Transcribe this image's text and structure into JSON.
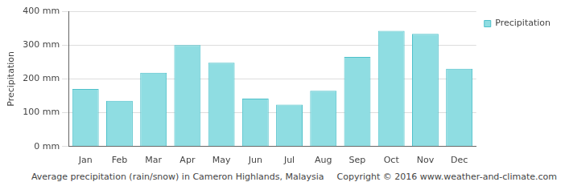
{
  "chart_data": {
    "type": "bar",
    "title": "Average precipitation (rain/snow) in Cameron Highlands, Malaysia",
    "annotations": [
      "Copyright © 2016 www.weather-and-climate.com"
    ],
    "y_label": "Precipitation",
    "categories": [
      "Jan",
      "Feb",
      "Mar",
      "Apr",
      "May",
      "Jun",
      "Jul",
      "Aug",
      "Sep",
      "Oct",
      "Nov",
      "Dec"
    ],
    "series": [
      {
        "name": "Precipitation",
        "color": "#8fdde2",
        "values": [
          170,
          135,
          218,
          300,
          248,
          142,
          124,
          165,
          265,
          342,
          333,
          230
        ]
      }
    ],
    "ylim": [
      0,
      400
    ],
    "yticks": [
      {
        "value": 0,
        "label": "0 mm"
      },
      {
        "value": 100,
        "label": "100 mm"
      },
      {
        "value": 200,
        "label": "200 mm"
      },
      {
        "value": 300,
        "label": "300 mm"
      },
      {
        "value": 400,
        "label": "400 mm"
      }
    ],
    "grid": true,
    "legend": "top-right"
  }
}
